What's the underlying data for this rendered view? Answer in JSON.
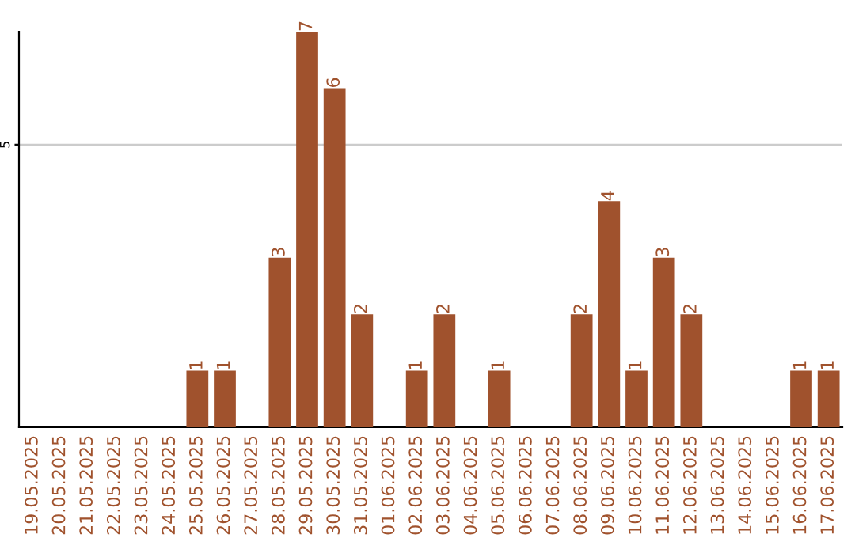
{
  "chart_data": {
    "type": "bar",
    "categories": [
      "19.05.2025",
      "20.05.2025",
      "21.05.2025",
      "22.05.2025",
      "23.05.2025",
      "24.05.2025",
      "25.05.2025",
      "26.05.2025",
      "27.05.2025",
      "28.05.2025",
      "29.05.2025",
      "30.05.2025",
      "31.05.2025",
      "01.06.2025",
      "02.06.2025",
      "03.06.2025",
      "04.06.2025",
      "05.06.2025",
      "06.06.2025",
      "07.06.2025",
      "08.06.2025",
      "09.06.2025",
      "10.06.2025",
      "11.06.2025",
      "12.06.2025",
      "13.06.2025",
      "14.06.2025",
      "15.06.2025",
      "16.06.2025",
      "17.06.2025"
    ],
    "values": [
      0,
      0,
      0,
      0,
      0,
      0,
      1,
      1,
      0,
      3,
      7,
      6,
      2,
      0,
      1,
      2,
      0,
      1,
      0,
      0,
      2,
      4,
      1,
      3,
      2,
      0,
      0,
      0,
      1,
      1
    ],
    "value_labels": [
      null,
      null,
      null,
      null,
      null,
      null,
      "1",
      "1",
      null,
      "3",
      "7",
      "6",
      "2",
      null,
      "1",
      "2",
      null,
      "1",
      null,
      null,
      "2",
      "4",
      "1",
      "3",
      "2",
      null,
      null,
      null,
      "1",
      "1"
    ],
    "color": "#a0522d",
    "ylim": [
      0,
      7
    ],
    "yticks": [
      5
    ],
    "grid": "y"
  }
}
